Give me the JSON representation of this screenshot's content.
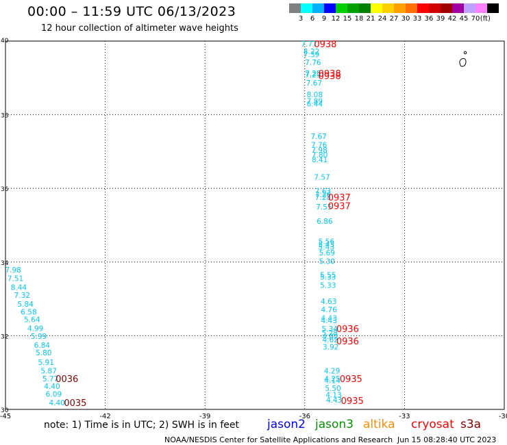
{
  "header": {
    "title": "00:00 – 11:59 UTC 06/13/2023",
    "subtitle": "12 hour collection of altimeter wave heights"
  },
  "scale": {
    "colors": [
      "#808080",
      "#00ffff",
      "#00b0ff",
      "#0000ff",
      "#00d000",
      "#00a000",
      "#008000",
      "#ffff00",
      "#ffd000",
      "#ffa000",
      "#ff7000",
      "#ff0000",
      "#d00000",
      "#a00000",
      "#a000a0",
      "#c0a0ff",
      "#ff80ff",
      "#000000"
    ],
    "labels": [
      "3",
      "6",
      "9",
      "12",
      "15",
      "18",
      "21",
      "24",
      "27",
      "30",
      "33",
      "36",
      "39",
      "42",
      "45",
      "70"
    ],
    "unit": "(ft)"
  },
  "footer": {
    "note": "note: 1) Time is in UTC; 2) SWH is in feet",
    "satellites": [
      {
        "name": "jason2",
        "color": "#0000ff"
      },
      {
        "name": "jason3",
        "color": "#009000"
      },
      {
        "name": "altika",
        "color": "#ff8c00"
      },
      {
        "name": "cryosat",
        "color": "#ff0000"
      },
      {
        "name": "s3a",
        "color": "#800000"
      }
    ],
    "credit": "NOAA/NESDIS Center for Satellite Applications and Research",
    "timestamp": "Jun 15 08:28:40 UTC 2023"
  },
  "chart_data": {
    "type": "scatter",
    "xlim": [
      -45,
      -30
    ],
    "ylim": [
      30,
      40
    ],
    "x_ticks": [
      "-45",
      "-42",
      "-39",
      "-36",
      "-33",
      "-30"
    ],
    "y_ticks": [
      "30",
      "32",
      "34",
      "36",
      "38",
      "40"
    ],
    "grid": true,
    "track_color": "#00c8f0",
    "series": [
      {
        "name": "",
        "color": "#00c8f0",
        "points": [
          {
            "x": -35.87,
            "y": 39.93,
            "label": "7.77"
          },
          {
            "x": -35.8,
            "y": 39.72,
            "label": "8.22"
          },
          {
            "x": -35.8,
            "y": 39.64,
            "label": "7.39"
          },
          {
            "x": -35.75,
            "y": 39.42,
            "label": "7.76"
          },
          {
            "x": -35.75,
            "y": 39.13,
            "label": "7.25"
          },
          {
            "x": -35.75,
            "y": 39.09,
            "label": "7.29"
          },
          {
            "x": -35.72,
            "y": 38.87,
            "label": "7.67"
          },
          {
            "x": -35.7,
            "y": 38.55,
            "label": "8.08"
          },
          {
            "x": -35.7,
            "y": 38.37,
            "label": "7.89"
          },
          {
            "x": -35.7,
            "y": 38.3,
            "label": "6.44"
          },
          {
            "x": -35.58,
            "y": 37.42,
            "label": "7.67"
          },
          {
            "x": -35.57,
            "y": 37.18,
            "label": "7.76"
          },
          {
            "x": -35.56,
            "y": 37.04,
            "label": "7.98"
          },
          {
            "x": -35.55,
            "y": 36.91,
            "label": "7.80"
          },
          {
            "x": -35.55,
            "y": 36.78,
            "label": "8.41"
          },
          {
            "x": -35.48,
            "y": 36.31,
            "label": "7.57"
          },
          {
            "x": -35.45,
            "y": 35.93,
            "label": "7.63"
          },
          {
            "x": -35.45,
            "y": 35.84,
            "label": "7.26"
          },
          {
            "x": -35.45,
            "y": 35.76,
            "label": "7.28"
          },
          {
            "x": -35.42,
            "y": 35.5,
            "label": "7.55"
          },
          {
            "x": -35.4,
            "y": 35.11,
            "label": "6.86"
          },
          {
            "x": -35.35,
            "y": 34.56,
            "label": "5.56"
          },
          {
            "x": -35.35,
            "y": 34.48,
            "label": "5.43"
          },
          {
            "x": -35.35,
            "y": 34.41,
            "label": "5.43"
          },
          {
            "x": -35.33,
            "y": 34.26,
            "label": "5.69"
          },
          {
            "x": -35.33,
            "y": 34.02,
            "label": "5.30"
          },
          {
            "x": -35.3,
            "y": 33.65,
            "label": "5.55"
          },
          {
            "x": -35.3,
            "y": 33.6,
            "label": "5.33"
          },
          {
            "x": -35.3,
            "y": 33.37,
            "label": "5.33"
          },
          {
            "x": -35.28,
            "y": 32.94,
            "label": "4.63"
          },
          {
            "x": -35.27,
            "y": 32.71,
            "label": "4.76"
          },
          {
            "x": -35.27,
            "y": 32.48,
            "label": "4.43"
          },
          {
            "x": -35.27,
            "y": 32.42,
            "label": "4.43"
          },
          {
            "x": -35.25,
            "y": 32.19,
            "label": "5.34"
          },
          {
            "x": -35.25,
            "y": 32.08,
            "label": "5.28"
          },
          {
            "x": -35.23,
            "y": 31.98,
            "label": "4.02"
          },
          {
            "x": -35.23,
            "y": 31.9,
            "label": "4.62"
          },
          {
            "x": -35.22,
            "y": 31.7,
            "label": "3.92"
          },
          {
            "x": -35.18,
            "y": 31.05,
            "label": "4.29"
          },
          {
            "x": -35.17,
            "y": 30.84,
            "label": "4.25"
          },
          {
            "x": -35.17,
            "y": 30.79,
            "label": "4.14"
          },
          {
            "x": -35.15,
            "y": 30.58,
            "label": "5.50"
          },
          {
            "x": -35.13,
            "y": 30.4,
            "label": "4.13"
          },
          {
            "x": -35.12,
            "y": 30.26,
            "label": "4.43"
          },
          {
            "x": -44.77,
            "y": 33.79,
            "label": "7.98"
          },
          {
            "x": -44.7,
            "y": 33.56,
            "label": "7.51"
          },
          {
            "x": -44.6,
            "y": 33.32,
            "label": "8.44"
          },
          {
            "x": -44.5,
            "y": 33.1,
            "label": "7.32"
          },
          {
            "x": -44.4,
            "y": 32.86,
            "label": "5.84"
          },
          {
            "x": -44.3,
            "y": 32.65,
            "label": "6.58"
          },
          {
            "x": -44.2,
            "y": 32.44,
            "label": "5.64"
          },
          {
            "x": -44.1,
            "y": 32.2,
            "label": "4.99"
          },
          {
            "x": -44.0,
            "y": 31.99,
            "label": "5.99"
          },
          {
            "x": -43.9,
            "y": 31.75,
            "label": "6.84"
          },
          {
            "x": -43.85,
            "y": 31.54,
            "label": "5.80"
          },
          {
            "x": -43.78,
            "y": 31.28,
            "label": "5.91"
          },
          {
            "x": -43.7,
            "y": 31.05,
            "label": "5.87"
          },
          {
            "x": -43.65,
            "y": 30.84,
            "label": "5.77"
          },
          {
            "x": -43.6,
            "y": 30.63,
            "label": "4.40"
          },
          {
            "x": -43.55,
            "y": 30.42,
            "label": "6.09"
          },
          {
            "x": -43.45,
            "y": 30.19,
            "label": "4.40"
          }
        ]
      }
    ],
    "time_labels": [
      {
        "x": -35.38,
        "y": 39.93,
        "text": "0938",
        "color": "#ff0000"
      },
      {
        "x": -35.25,
        "y": 39.13,
        "text": "0938",
        "color": "#ff0000"
      },
      {
        "x": -35.25,
        "y": 39.06,
        "text": "0938",
        "color": "#ff0000"
      },
      {
        "x": -34.96,
        "y": 35.76,
        "text": "0937",
        "color": "#ff0000"
      },
      {
        "x": -34.96,
        "y": 35.53,
        "text": "0937",
        "color": "#ff0000"
      },
      {
        "x": -34.71,
        "y": 32.19,
        "text": "0936",
        "color": "#ff0000"
      },
      {
        "x": -34.71,
        "y": 31.86,
        "text": "0936",
        "color": "#ff0000"
      },
      {
        "x": -34.61,
        "y": 30.84,
        "text": "0935",
        "color": "#ff0000"
      },
      {
        "x": -34.57,
        "y": 30.24,
        "text": "0935",
        "color": "#ff0000"
      },
      {
        "x": -43.15,
        "y": 30.84,
        "text": "0036",
        "color": "#800000"
      },
      {
        "x": -42.9,
        "y": 30.19,
        "text": "0035",
        "color": "#800000"
      }
    ]
  }
}
